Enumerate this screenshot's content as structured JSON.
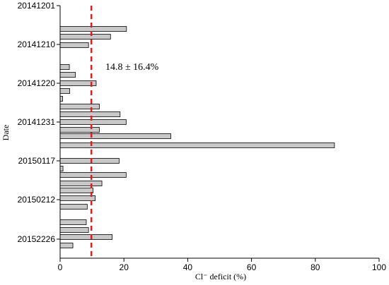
{
  "chart_data": {
    "type": "bar",
    "orientation": "horizontal",
    "xlabel": "Cl⁻ deficit (%)",
    "ylabel": "Date",
    "xlim": [
      0,
      100
    ],
    "x_ticks": [
      "0",
      "20",
      "40",
      "60",
      "80",
      "100"
    ],
    "y_tick_labels": [
      "20141201",
      "20141210",
      "20141220",
      "20141231",
      "20150117",
      "20150212",
      "20152226"
    ],
    "values": [
      20.8,
      15.8,
      8.9,
      2.9,
      4.8,
      11.3,
      3.0,
      0.8,
      12.3,
      18.8,
      20.7,
      12.3,
      34.7,
      86.0,
      18.5,
      0.9,
      20.7,
      13.1,
      10.3,
      11.0,
      8.5,
      8.2,
      8.9,
      16.3,
      4.0
    ],
    "bar_color": "#c8c8c8",
    "reference_line": {
      "value": 9.8,
      "color": "#e31a1c",
      "style": "dashed"
    },
    "annotation": "14.8 ± 16.4%",
    "grid": false
  }
}
